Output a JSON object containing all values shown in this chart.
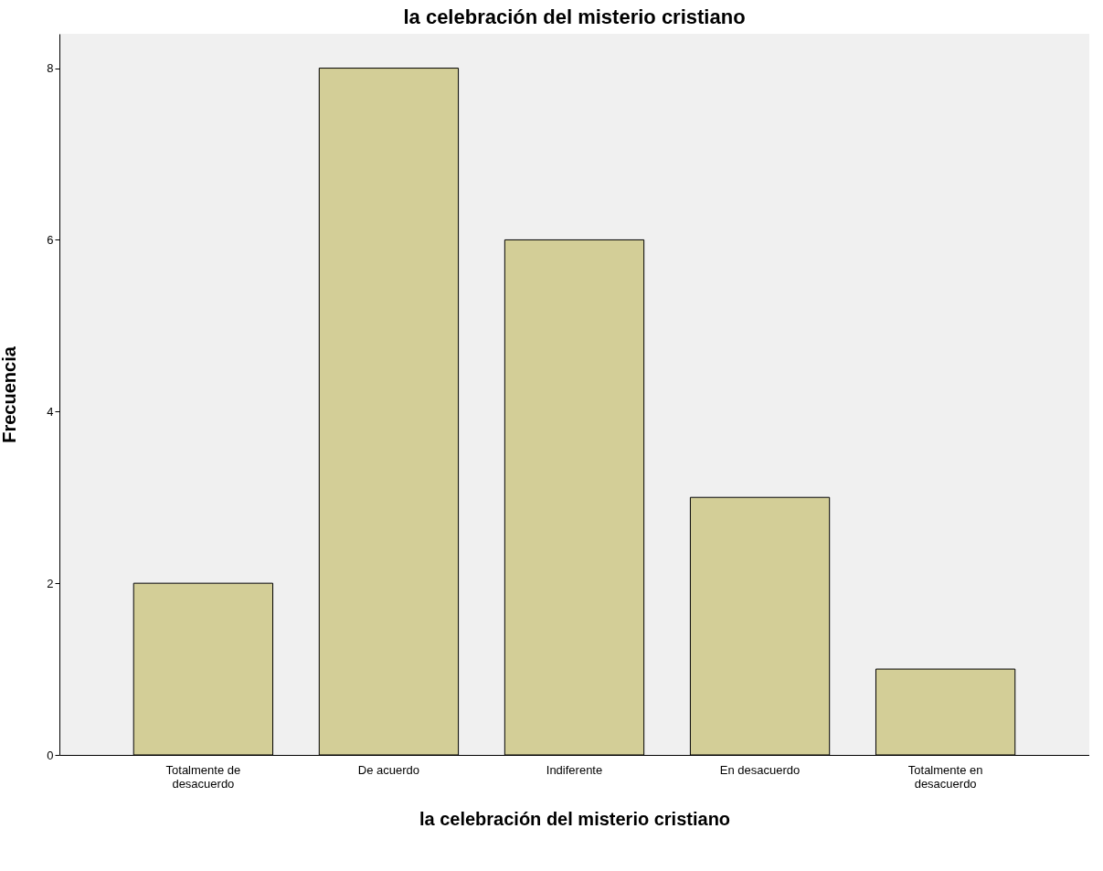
{
  "chart_data": {
    "type": "bar",
    "title": "la celebración del misterio cristiano",
    "xlabel": "la celebración del misterio cristiano",
    "ylabel": "Frecuencia",
    "categories": [
      "Totalmente de desacuerdo",
      "De acuerdo",
      "Indiferente",
      "En desacuerdo",
      "Totalmente en desacuerdo"
    ],
    "values": [
      2,
      8,
      6,
      3,
      1
    ],
    "color": "#d3ce97",
    "ylim": [
      0,
      8.4
    ],
    "yticks": [
      0,
      2,
      4,
      6,
      8
    ],
    "grid": false
  }
}
